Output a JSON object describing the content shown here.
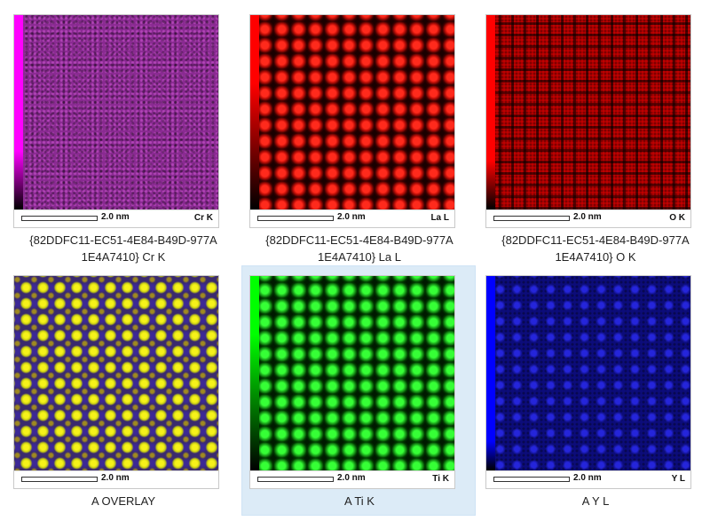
{
  "tiles": [
    {
      "scale": "2.0 nm",
      "channel": "Cr K",
      "caption_line1": "{82DDFC11-EC51-4E84-B49D-977A",
      "caption_line2": "1E4A7410} Cr K",
      "selected": false,
      "colors": {
        "map": "#8a2a92",
        "side": "#ff00ff"
      }
    },
    {
      "scale": "2.0 nm",
      "channel": "La L",
      "caption_line1": "{82DDFC11-EC51-4E84-B49D-977A",
      "caption_line2": "1E4A7410} La L",
      "selected": false,
      "colors": {
        "map": "#ff2a1c",
        "side": "#ff0000"
      }
    },
    {
      "scale": "2.0 nm",
      "channel": "O K",
      "caption_line1": "{82DDFC11-EC51-4E84-B49D-977A",
      "caption_line2": "1E4A7410} O K",
      "selected": false,
      "colors": {
        "map": "#c20000",
        "side": "#ff0000"
      }
    },
    {
      "scale": "2.0 nm",
      "channel": "",
      "caption_line1": "A OVERLAY",
      "caption_line2": "",
      "selected": false,
      "colors": {
        "map": "#f6f21a",
        "side": ""
      }
    },
    {
      "scale": "2.0 nm",
      "channel": "Ti K",
      "caption_line1": "A Ti K",
      "caption_line2": "",
      "selected": true,
      "colors": {
        "map": "#36ff36",
        "side": "#00ff00",
        "selection": "#dcebf7"
      }
    },
    {
      "scale": "2.0 nm",
      "channel": "Y L",
      "caption_line1": "A Y L",
      "caption_line2": "",
      "selected": false,
      "colors": {
        "map": "#2828e6",
        "side": "#0000ff"
      }
    }
  ]
}
